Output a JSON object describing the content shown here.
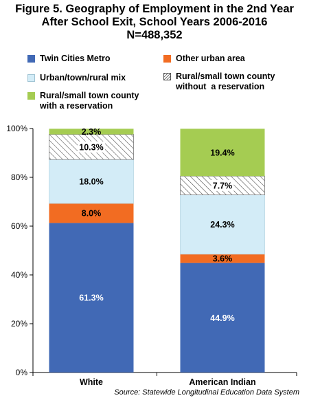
{
  "title_lines": [
    "Figure 5. Geography of Employment in the 2nd Year",
    "After School Exit, School Years 2006-2016",
    "N=488,352"
  ],
  "source": "Source: Statewide Longitudinal Education Data System",
  "colors": {
    "twin_cities": "#4169B5",
    "other_urban": "#F26C22",
    "mix": "#D3ECF7",
    "rural_without": "hatched",
    "rural_with": "#A5CC52"
  },
  "chart_data": {
    "type": "bar",
    "stacked": true,
    "title": "Figure 5. Geography of Employment in the 2nd Year After School Exit, School Years 2006-2016 N=488,352",
    "categories": [
      "White",
      "American Indian"
    ],
    "ylim": [
      0,
      100
    ],
    "yticks": [
      "0%",
      "20%",
      "40%",
      "60%",
      "80%",
      "100%"
    ],
    "grid": false,
    "legend_placement": "top",
    "series": [
      {
        "name": "Twin Cities Metro",
        "values": [
          61.3,
          44.9
        ],
        "labels": [
          "61.3%",
          "44.9%"
        ]
      },
      {
        "name": "Other urban area",
        "values": [
          8.0,
          3.6
        ],
        "labels": [
          "8.0%",
          "3.6%"
        ]
      },
      {
        "name": "Urban/town/rural mix",
        "values": [
          18.0,
          24.3
        ],
        "labels": [
          "18.0%",
          "24.3%"
        ]
      },
      {
        "name": "Rural/small town county without a reservation",
        "values": [
          10.3,
          7.7
        ],
        "labels": [
          "10.3%",
          "7.7%"
        ]
      },
      {
        "name": "Rural/small town county with a reservation",
        "values": [
          2.3,
          19.4
        ],
        "labels": [
          "2.3%",
          "19.4%"
        ]
      }
    ]
  },
  "legend": [
    {
      "lines": [
        "Twin Cities Metro"
      ]
    },
    {
      "lines": [
        "Other urban area"
      ]
    },
    {
      "lines": [
        "Urban/town/rural mix"
      ]
    },
    {
      "lines": [
        "Rural/small town county",
        "without  a reservation"
      ]
    },
    {
      "lines": [
        "Rural/small town county",
        "with a reservation"
      ]
    }
  ]
}
